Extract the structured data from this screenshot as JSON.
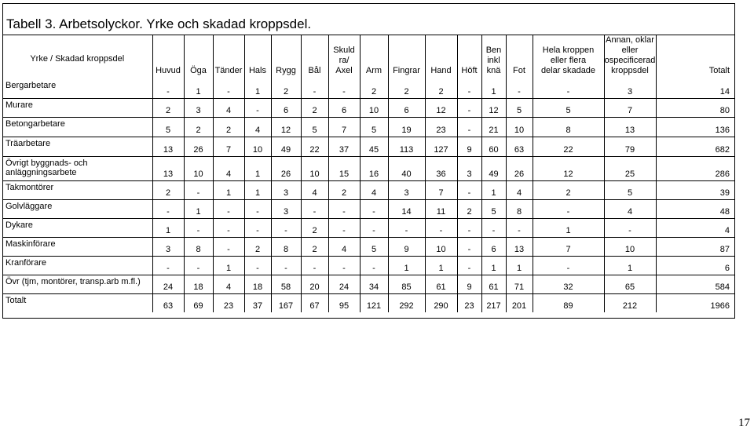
{
  "title": "Tabell 3. Arbetsolyckor. Yrke och skadad kroppsdel.",
  "header": {
    "row_header": "Yrke / Skadad kroppsdel",
    "columns": [
      {
        "lines": [
          "Huvud"
        ]
      },
      {
        "lines": [
          "Öga"
        ]
      },
      {
        "lines": [
          "Tänder"
        ]
      },
      {
        "lines": [
          "Hals"
        ]
      },
      {
        "lines": [
          "Rygg"
        ]
      },
      {
        "lines": [
          "Bål"
        ]
      },
      {
        "lines": [
          "Skuld",
          "ra/",
          "Axel"
        ]
      },
      {
        "lines": [
          "Arm"
        ]
      },
      {
        "lines": [
          "Fingrar"
        ]
      },
      {
        "lines": [
          "Hand"
        ]
      },
      {
        "lines": [
          "Höft"
        ]
      },
      {
        "lines": [
          "Ben",
          "inkl",
          "knä"
        ]
      },
      {
        "lines": [
          "Fot"
        ]
      },
      {
        "lines": [
          "Hela kroppen",
          "eller flera",
          "delar skadade"
        ]
      },
      {
        "lines": [
          "Annan, oklar",
          "eller",
          "ospecificerad",
          "kroppsdel"
        ]
      },
      {
        "lines": [
          "Totalt"
        ]
      }
    ]
  },
  "rows": [
    {
      "label": "Bergarbetare",
      "values": [
        "-",
        "1",
        "-",
        "1",
        "2",
        "-",
        "-",
        "2",
        "2",
        "2",
        "-",
        "1",
        "-",
        "-",
        "3",
        "14"
      ]
    },
    {
      "label": "Murare",
      "values": [
        "2",
        "3",
        "4",
        "-",
        "6",
        "2",
        "6",
        "10",
        "6",
        "12",
        "-",
        "12",
        "5",
        "5",
        "7",
        "80"
      ]
    },
    {
      "label": "Betongarbetare",
      "values": [
        "5",
        "2",
        "2",
        "4",
        "12",
        "5",
        "7",
        "5",
        "19",
        "23",
        "-",
        "21",
        "10",
        "8",
        "13",
        "136"
      ]
    },
    {
      "label": "Träarbetare",
      "values": [
        "13",
        "26",
        "7",
        "10",
        "49",
        "22",
        "37",
        "45",
        "113",
        "127",
        "9",
        "60",
        "63",
        "22",
        "79",
        "682"
      ]
    },
    {
      "label": "Övrigt byggnads- och anläggningsarbete",
      "values": [
        "13",
        "10",
        "4",
        "1",
        "26",
        "10",
        "15",
        "16",
        "40",
        "36",
        "3",
        "49",
        "26",
        "12",
        "25",
        "286"
      ]
    },
    {
      "label": "Takmontörer",
      "values": [
        "2",
        "-",
        "1",
        "1",
        "3",
        "4",
        "2",
        "4",
        "3",
        "7",
        "-",
        "1",
        "4",
        "2",
        "5",
        "39"
      ]
    },
    {
      "label": "Golvläggare",
      "values": [
        "-",
        "1",
        "-",
        "-",
        "3",
        "-",
        "-",
        "-",
        "14",
        "11",
        "2",
        "5",
        "8",
        "-",
        "4",
        "48"
      ]
    },
    {
      "label": "Dykare",
      "values": [
        "1",
        "-",
        "-",
        "-",
        "-",
        "2",
        "-",
        "-",
        "-",
        "-",
        "-",
        "-",
        "-",
        "1",
        "-",
        "4"
      ]
    },
    {
      "label": "Maskinförare",
      "values": [
        "3",
        "8",
        "-",
        "2",
        "8",
        "2",
        "4",
        "5",
        "9",
        "10",
        "-",
        "6",
        "13",
        "7",
        "10",
        "87"
      ]
    },
    {
      "label": "Kranförare",
      "values": [
        "-",
        "-",
        "1",
        "-",
        "-",
        "-",
        "-",
        "-",
        "1",
        "1",
        "-",
        "1",
        "1",
        "-",
        "1",
        "6"
      ]
    },
    {
      "label": "Övr (tjm, montörer, transp.arb m.fl.)",
      "values": [
        "24",
        "18",
        "4",
        "18",
        "58",
        "20",
        "24",
        "34",
        "85",
        "61",
        "9",
        "61",
        "71",
        "32",
        "65",
        "584"
      ]
    },
    {
      "label": "Totalt",
      "values": [
        "63",
        "69",
        "23",
        "37",
        "167",
        "67",
        "95",
        "121",
        "292",
        "290",
        "23",
        "217",
        "201",
        "89",
        "212",
        "1966"
      ]
    }
  ],
  "page_number": "17"
}
